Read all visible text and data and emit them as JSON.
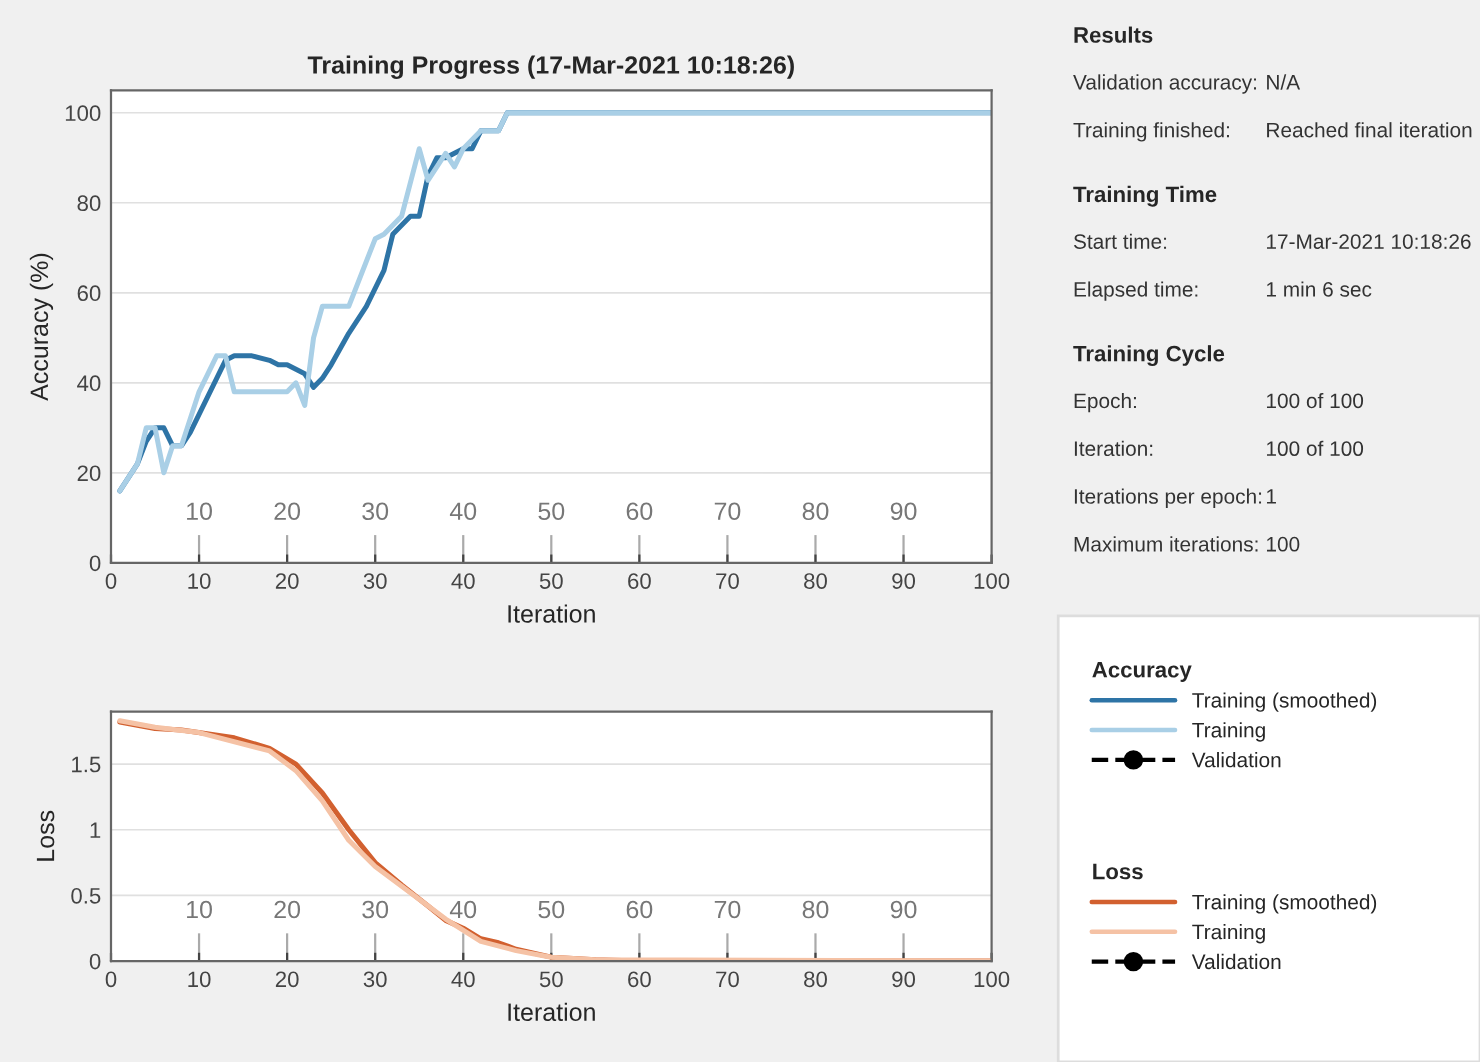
{
  "chart_data": [
    {
      "type": "line",
      "title": "Training Progress (17-Mar-2021 10:18:26)",
      "xlabel": "Iteration",
      "ylabel": "Accuracy (%)",
      "xlim": [
        0,
        100
      ],
      "ylim": [
        0,
        105
      ],
      "xticks": [
        0,
        10,
        20,
        30,
        40,
        50,
        60,
        70,
        80,
        90,
        100
      ],
      "yticks": [
        0,
        20,
        40,
        60,
        80,
        100
      ],
      "grid": "y",
      "legend": "right",
      "legend_title": "Accuracy",
      "series": [
        {
          "name": "Training (smoothed)",
          "color": "#2e74a6",
          "line_style": "solid",
          "marker": "none",
          "x": [
            1,
            3,
            4,
            5,
            6,
            7,
            8,
            9,
            10,
            12,
            13,
            14,
            16,
            18,
            19,
            20,
            21,
            22,
            23,
            24,
            25,
            27,
            29,
            31,
            32,
            34,
            35,
            36,
            37,
            38,
            40,
            41,
            42,
            44,
            45,
            100
          ],
          "values": [
            16,
            22,
            27,
            30,
            30,
            26,
            26,
            29,
            33,
            41,
            45,
            46,
            46,
            45,
            44,
            44,
            43,
            42,
            39,
            41,
            44,
            51,
            57,
            65,
            73,
            77,
            77,
            86,
            90,
            90,
            92,
            92,
            96,
            96,
            100,
            100
          ]
        },
        {
          "name": "Training",
          "color": "#a9cfe6",
          "line_style": "solid",
          "marker": "none",
          "x": [
            1,
            3,
            4,
            5,
            6,
            7,
            8,
            10,
            12,
            13,
            14,
            20,
            21,
            22,
            23,
            24,
            25,
            27,
            30,
            31,
            33,
            35,
            36,
            37,
            38,
            39,
            40,
            42,
            44,
            45,
            100
          ],
          "values": [
            16,
            22,
            30,
            30,
            20,
            26,
            26,
            38,
            46,
            46,
            38,
            38,
            40,
            35,
            50,
            57,
            57,
            57,
            72,
            73,
            77,
            92,
            85,
            88,
            91,
            88,
            92,
            96,
            96,
            100,
            100
          ]
        },
        {
          "name": "Validation",
          "color": "#000000",
          "line_style": "dashed",
          "marker": "circle"
        }
      ],
      "x2lim": [
        0,
        100
      ],
      "x2ticks": [
        10,
        20,
        30,
        40,
        50,
        60,
        70,
        80,
        90
      ]
    },
    {
      "type": "line",
      "xlabel": "Iteration",
      "ylabel": "Loss",
      "xlim": [
        0,
        100
      ],
      "ylim": [
        0,
        1.9
      ],
      "xticks": [
        0,
        10,
        20,
        30,
        40,
        50,
        60,
        70,
        80,
        90,
        100
      ],
      "yticks": [
        0,
        0.5,
        1,
        1.5
      ],
      "grid": "y",
      "legend": "right",
      "legend_title": "Loss",
      "series": [
        {
          "name": "Training (smoothed)",
          "color": "#d2602f",
          "line_style": "solid",
          "marker": "none",
          "x": [
            1,
            5,
            8,
            14,
            18,
            21,
            24,
            27,
            30,
            33,
            36,
            38,
            40,
            42,
            44,
            46,
            50,
            55,
            60,
            100
          ],
          "values": [
            1.82,
            1.77,
            1.76,
            1.7,
            1.62,
            1.5,
            1.28,
            1.0,
            0.75,
            0.58,
            0.42,
            0.31,
            0.25,
            0.17,
            0.14,
            0.09,
            0.03,
            0.01,
            0,
            0
          ]
        },
        {
          "name": "Training",
          "color": "#f5c2a5",
          "line_style": "solid",
          "marker": "none",
          "x": [
            1,
            5,
            10,
            18,
            21,
            24,
            27,
            30,
            34,
            38,
            42,
            46,
            50,
            55,
            100
          ],
          "values": [
            1.83,
            1.78,
            1.74,
            1.6,
            1.45,
            1.22,
            0.92,
            0.72,
            0.52,
            0.32,
            0.15,
            0.08,
            0.03,
            0.01,
            0
          ]
        },
        {
          "name": "Validation",
          "color": "#000000",
          "line_style": "dashed",
          "marker": "circle"
        }
      ],
      "x2lim": [
        0,
        100
      ],
      "x2ticks": [
        10,
        20,
        30,
        40,
        50,
        60,
        70,
        80,
        90
      ]
    },
    {
      "type": "other",
      "title": "Results",
      "annotations": [
        "Validation accuracy:",
        "N/A",
        "Training finished:",
        "Reached final iteration"
      ]
    },
    {
      "type": "other",
      "title": "Training Time",
      "annotations": [
        "Start time:",
        "17-Mar-2021 10:18:26",
        "Elapsed time:",
        "1 min 6 sec"
      ]
    },
    {
      "type": "other",
      "title": "Training Cycle",
      "annotations": [
        "Epoch:",
        "100 of 100",
        "Iteration:",
        "100 of 100",
        "Iterations per epoch:",
        "1",
        "Maximum iterations:",
        "100"
      ]
    }
  ]
}
